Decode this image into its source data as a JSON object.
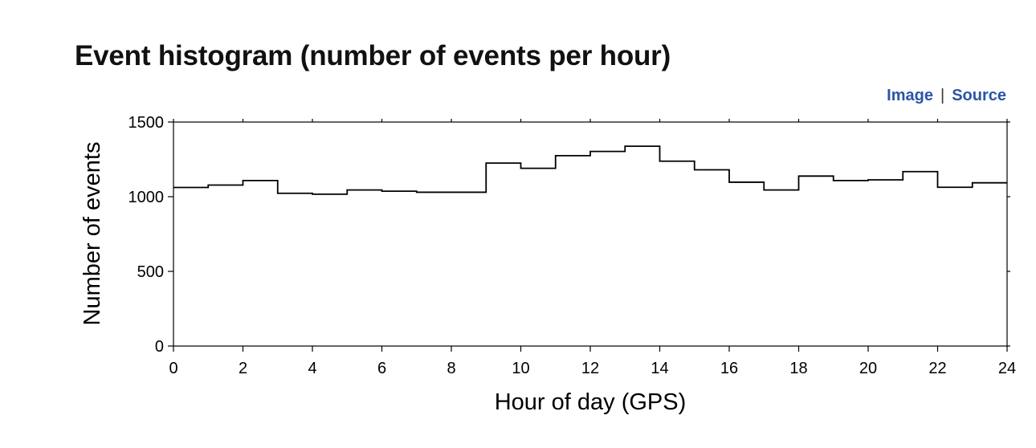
{
  "page": {
    "title": "Event histogram (number of events per hour)"
  },
  "links": {
    "image_label": "Image",
    "separator": "|",
    "source_label": "Source"
  },
  "chart_data": {
    "type": "bar",
    "style": "step-histogram",
    "title": "",
    "xlabel": "Hour of day (GPS)",
    "ylabel": "Number of events",
    "xlim": [
      0,
      24
    ],
    "ylim": [
      0,
      1500
    ],
    "x_ticks": [
      0,
      2,
      4,
      6,
      8,
      10,
      12,
      14,
      16,
      18,
      20,
      22,
      24
    ],
    "y_ticks": [
      0,
      500,
      1000,
      1500
    ],
    "bin_width": 1,
    "categories": [
      "0",
      "1",
      "2",
      "3",
      "4",
      "5",
      "6",
      "7",
      "8",
      "9",
      "10",
      "11",
      "12",
      "13",
      "14",
      "15",
      "16",
      "17",
      "18",
      "19",
      "20",
      "21",
      "22",
      "23"
    ],
    "values": [
      1062,
      1078,
      1108,
      1023,
      1017,
      1045,
      1037,
      1030,
      1030,
      1225,
      1190,
      1275,
      1303,
      1338,
      1238,
      1180,
      1097,
      1045,
      1138,
      1108,
      1113,
      1168,
      1063,
      1093
    ],
    "grid": false,
    "line_color": "#000000"
  }
}
